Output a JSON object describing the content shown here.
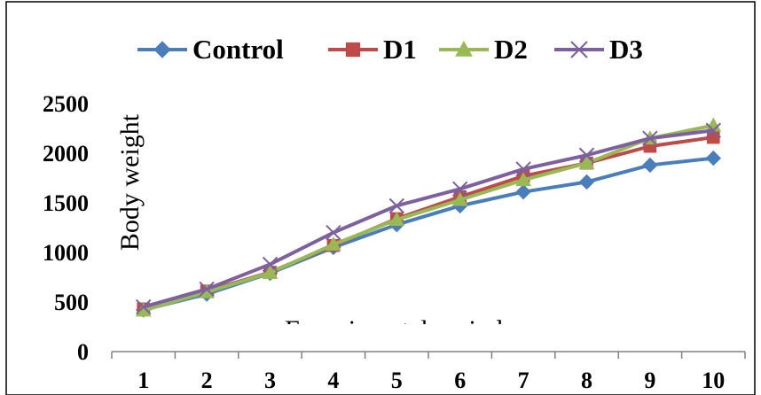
{
  "chart_data": {
    "type": "line",
    "title": "",
    "xlabel": "Experimental period",
    "ylabel": "Body weight",
    "categories": [
      "1",
      "2",
      "3",
      "4",
      "5",
      "6",
      "7",
      "8",
      "9",
      "10"
    ],
    "ylim": [
      0,
      2500
    ],
    "yticks": [
      "0",
      "500",
      "1000",
      "1500",
      "2000",
      "2500"
    ],
    "grid": false,
    "legend_position": "top",
    "series": [
      {
        "name": "Control",
        "color": "#4a7ebb",
        "marker": "diamond",
        "values": [
          420,
          580,
          790,
          1050,
          1280,
          1470,
          1610,
          1710,
          1880,
          1950
        ]
      },
      {
        "name": "D1",
        "color": "#be4b48",
        "marker": "square",
        "values": [
          430,
          610,
          800,
          1070,
          1340,
          1560,
          1770,
          1900,
          2070,
          2160
        ]
      },
      {
        "name": "D2",
        "color": "#98b954",
        "marker": "triangle",
        "values": [
          415,
          600,
          795,
          1080,
          1330,
          1530,
          1730,
          1900,
          2150,
          2280
        ]
      },
      {
        "name": "D3",
        "color": "#7d60a0",
        "marker": "x",
        "values": [
          450,
          630,
          880,
          1200,
          1470,
          1640,
          1840,
          1980,
          2150,
          2230
        ]
      }
    ]
  }
}
